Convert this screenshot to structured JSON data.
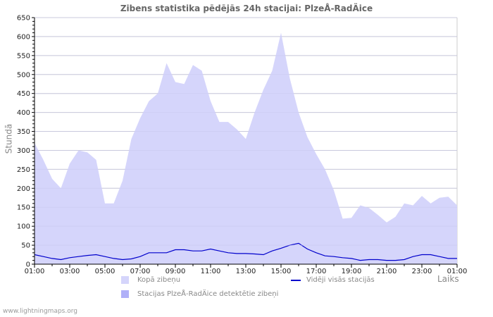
{
  "chart_data": {
    "type": "area",
    "title": "Zibens statistika pēdējās 24h stacijai: PlzeÅ-RadÄice",
    "xlabel": "Laiks",
    "ylabel": "Stundā",
    "ylim": [
      0,
      650
    ],
    "yticks": [
      0,
      50,
      100,
      150,
      200,
      250,
      300,
      350,
      400,
      450,
      500,
      550,
      600,
      650
    ],
    "xtick_labels": [
      "01:00",
      "03:00",
      "05:00",
      "07:00",
      "09:00",
      "11:00",
      "13:00",
      "15:00",
      "17:00",
      "19:00",
      "21:00",
      "23:00",
      "01:00"
    ],
    "grid": true,
    "legend_position": "bottom",
    "x": [
      "01:00",
      "01:30",
      "02:00",
      "02:30",
      "03:00",
      "03:30",
      "04:00",
      "04:30",
      "05:00",
      "05:30",
      "06:00",
      "06:30",
      "07:00",
      "07:30",
      "08:00",
      "08:30",
      "09:00",
      "09:30",
      "10:00",
      "10:30",
      "11:00",
      "11:30",
      "12:00",
      "12:30",
      "13:00",
      "13:30",
      "14:00",
      "14:30",
      "15:00",
      "15:30",
      "16:00",
      "16:30",
      "17:00",
      "17:30",
      "18:00",
      "18:30",
      "19:00",
      "19:30",
      "20:00",
      "20:30",
      "21:00",
      "21:30",
      "22:00",
      "22:30",
      "23:00",
      "23:30",
      "00:00",
      "00:30",
      "01:00"
    ],
    "series": [
      {
        "name": "Kopā zibeņu",
        "type": "area",
        "color": "#d5d5fb",
        "values": [
          320,
          275,
          225,
          200,
          265,
          300,
          295,
          275,
          160,
          160,
          220,
          330,
          385,
          430,
          450,
          530,
          480,
          475,
          525,
          510,
          430,
          375,
          375,
          355,
          330,
          400,
          460,
          510,
          610,
          490,
          400,
          335,
          290,
          250,
          195,
          120,
          122,
          155,
          148,
          130,
          110,
          125,
          160,
          155,
          180,
          160,
          175,
          178,
          155
        ]
      },
      {
        "name": "Stacijas PlzeÅ-RadÄice detektētie zibeņi",
        "type": "area",
        "color": "#b0b0f8",
        "values": [
          0,
          0,
          0,
          0,
          0,
          0,
          0,
          0,
          0,
          0,
          0,
          0,
          0,
          0,
          0,
          0,
          0,
          0,
          0,
          0,
          0,
          0,
          0,
          0,
          0,
          0,
          0,
          0,
          0,
          0,
          0,
          0,
          0,
          0,
          0,
          0,
          0,
          0,
          0,
          0,
          0,
          0,
          0,
          0,
          0,
          0,
          0,
          0,
          0
        ]
      },
      {
        "name": "Vidēji visās stacijās",
        "type": "line",
        "color": "#0000cc",
        "values": [
          25,
          20,
          15,
          12,
          17,
          20,
          23,
          25,
          20,
          15,
          12,
          14,
          20,
          30,
          30,
          30,
          38,
          38,
          35,
          35,
          40,
          35,
          30,
          28,
          28,
          27,
          25,
          35,
          42,
          50,
          55,
          40,
          30,
          22,
          20,
          17,
          15,
          10,
          12,
          12,
          10,
          10,
          12,
          20,
          25,
          25,
          20,
          15,
          15
        ]
      }
    ]
  },
  "legend": {
    "total": "Kopā zibeņu",
    "station": "Stacijas PlzeÅ-RadÄice detektētie zibeņi",
    "average": "Vidēji visās stacijās"
  },
  "colors": {
    "total_fill": "#d5d5fb",
    "station_fill": "#b0b0f8",
    "average_line": "#0000cc",
    "grid": "#cccccc",
    "text": "#888888"
  },
  "footer": "www.lightningmaps.org"
}
